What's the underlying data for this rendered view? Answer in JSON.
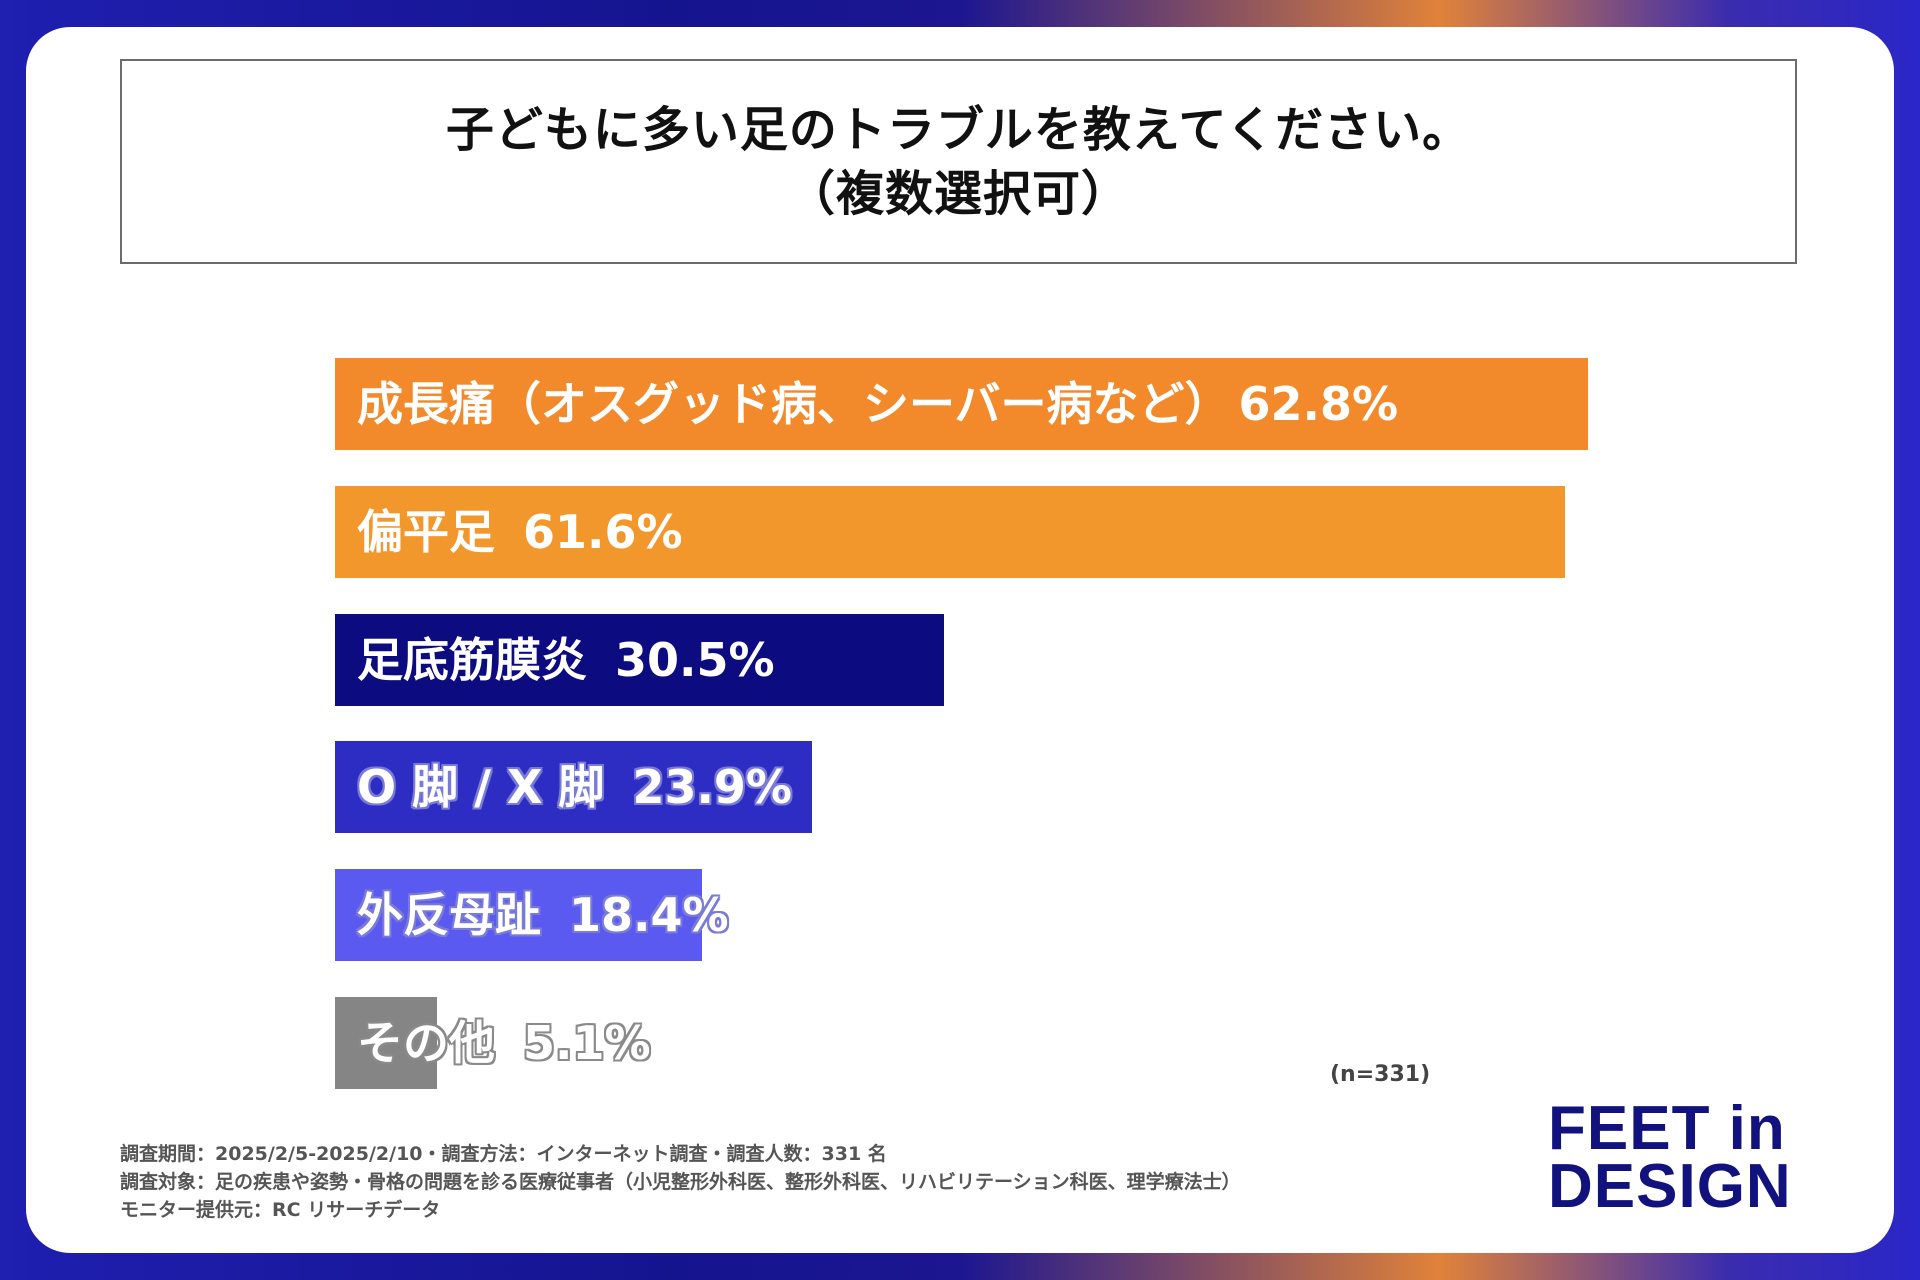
{
  "title": {
    "line1": "子どもに多い足のトラブルを教えてください。",
    "line2": "（複数選択可）"
  },
  "chart_data": {
    "type": "bar",
    "orientation": "horizontal",
    "title": "子どもに多い足のトラブルを教えてください。（複数選択可）",
    "categories": [
      "成長痛（オスグッド病、シーバー病など）",
      "偏平足",
      "足底筋膜炎",
      "O 脚 / X 脚",
      "外反母趾",
      "その他"
    ],
    "values": [
      62.8,
      61.6,
      30.5,
      23.9,
      18.4,
      5.1
    ],
    "value_labels": [
      "62.8%",
      "61.6%",
      "30.5%",
      "23.9%",
      "18.4%",
      "5.1%"
    ],
    "unit": "%",
    "xlim": [
      0,
      100
    ],
    "colors": [
      "#f28a2c",
      "#f2972c",
      "#0c0c80",
      "#2d2dc4",
      "#5a5af0",
      "#858585"
    ]
  },
  "sample_size": "(n=331)",
  "notes": [
    "調査期間：2025/2/5-2025/2/10・調査方法：インターネット調査・調査人数：331 名",
    "調査対象：足の疾患や姿勢・骨格の問題を診る医療従事者（小児整形外科医、整形外科医、リハビリテーション科医、理学療法士）",
    "モニター提供元：RC リサーチデータ"
  ],
  "logo": {
    "line1": "FEET in",
    "line2": "DESIGN"
  }
}
